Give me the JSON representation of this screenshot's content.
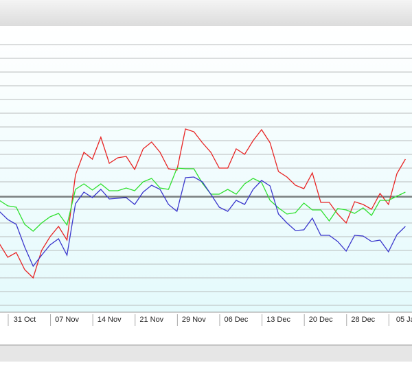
{
  "chart_data": {
    "type": "line",
    "categories": [
      null,
      null,
      null,
      "31 Oct",
      null,
      null,
      null,
      null,
      "07 Nov",
      null,
      null,
      null,
      null,
      "14 Nov",
      null,
      null,
      null,
      null,
      "21 Nov",
      null,
      null,
      null,
      null,
      "29 Nov",
      null,
      null,
      null,
      null,
      "06 Dec",
      null,
      null,
      null,
      null,
      "13 Dec",
      null,
      null,
      null,
      null,
      "20 Dec",
      null,
      null,
      null,
      null,
      "28 Dec",
      null,
      null,
      null,
      null,
      "05 Ja"
    ],
    "series": [
      {
        "color": "#e82424",
        "values": [
          100,
          80,
          87,
          62,
          50,
          90,
          110,
          125,
          105,
          200,
          233,
          223,
          255,
          217,
          225,
          227,
          208,
          238,
          248,
          233,
          209,
          207,
          267,
          263,
          247,
          233,
          210,
          210,
          238,
          230,
          250,
          266,
          247,
          205,
          197,
          185,
          180,
          203,
          160,
          160,
          143,
          130,
          161,
          157,
          150,
          173,
          157,
          202,
          223
        ]
      },
      {
        "color": "#2ee02e",
        "values": [
          163,
          155,
          153,
          128,
          118,
          130,
          139,
          144,
          127,
          179,
          187,
          178,
          187,
          177,
          177,
          181,
          177,
          190,
          195,
          181,
          179,
          210,
          209,
          209,
          188,
          172,
          172,
          179,
          172,
          187,
          195,
          189,
          163,
          152,
          143,
          145,
          159,
          149,
          149,
          133,
          151,
          149,
          144,
          152,
          141,
          163,
          163,
          169,
          175
        ]
      },
      {
        "color": "#3a36cc",
        "values": [
          147,
          135,
          128,
          95,
          67,
          83,
          98,
          107,
          83,
          158,
          175,
          167,
          179,
          165,
          166,
          167,
          157,
          175,
          185,
          179,
          157,
          147,
          196,
          197,
          190,
          172,
          153,
          147,
          163,
          157,
          179,
          192,
          184,
          143,
          130,
          119,
          120,
          137,
          112,
          112,
          103,
          89,
          112,
          111,
          103,
          105,
          88,
          113,
          125
        ]
      }
    ],
    "reference_line": {
      "value": 168,
      "color": "#000000"
    },
    "ylim": [
      0,
      417
    ],
    "grid_lines": [
      10,
      30,
      50,
      70,
      90,
      110,
      130,
      150,
      170,
      190,
      210,
      230,
      250,
      270,
      290,
      310,
      330,
      350,
      370,
      390
    ],
    "grid": true
  }
}
